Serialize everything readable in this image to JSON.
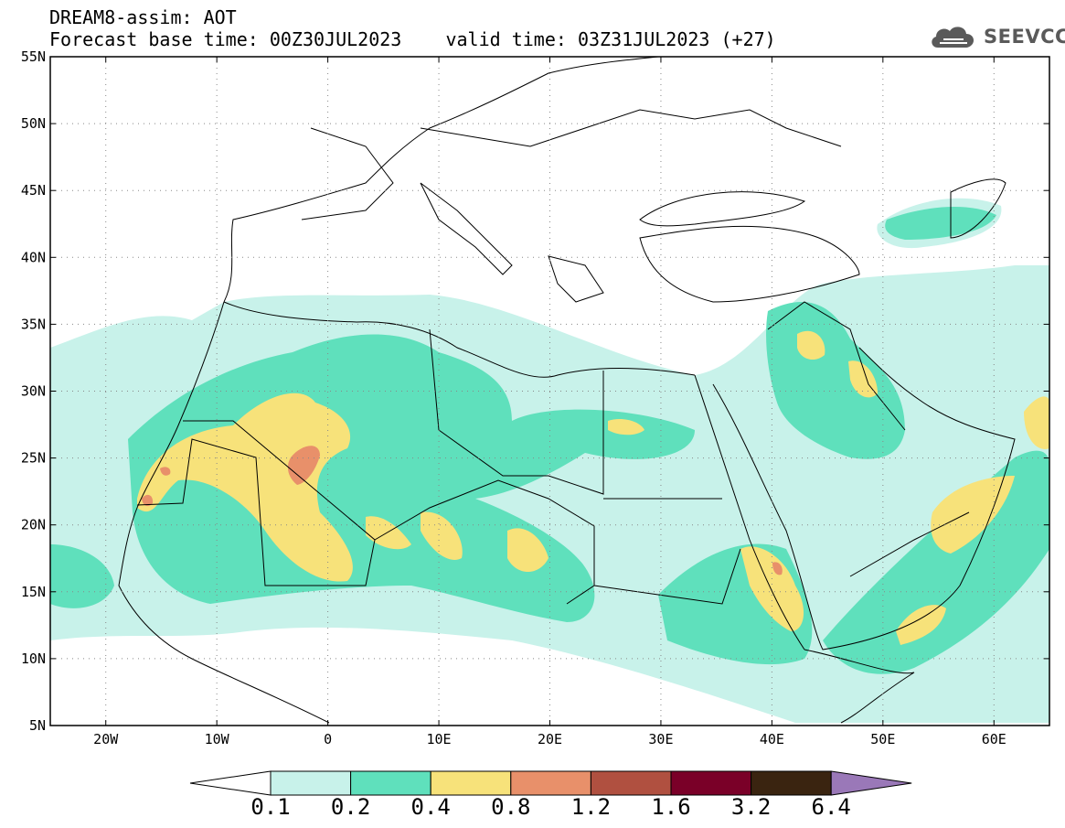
{
  "header": {
    "title_line1": "DREAM8-assim: AOT",
    "title_line2": "Forecast base time: 00Z30JUL2023    valid time: 03Z31JUL2023 (+27)",
    "logo_text": "SEEVCCC",
    "logo_icon": "cloud-icon"
  },
  "axes": {
    "lat_labels": [
      "55N",
      "50N",
      "45N",
      "40N",
      "35N",
      "30N",
      "25N",
      "20N",
      "15N",
      "10N",
      "5N"
    ],
    "lon_labels": [
      "20W",
      "10W",
      "0",
      "10E",
      "20E",
      "30E",
      "40E",
      "50E",
      "60E"
    ],
    "lat_range": [
      5,
      55
    ],
    "lon_range": [
      -25,
      65
    ]
  },
  "colorbar": {
    "labels": [
      "0.1",
      "0.2",
      "0.4",
      "0.8",
      "1.2",
      "1.6",
      "3.2",
      "6.4"
    ],
    "colors": [
      "#ffffff",
      "#c8f2ea",
      "#5fe0bc",
      "#f7e27a",
      "#e8906a",
      "#b05040",
      "#7a0028",
      "#3a2410",
      "#9a78b8"
    ]
  }
}
